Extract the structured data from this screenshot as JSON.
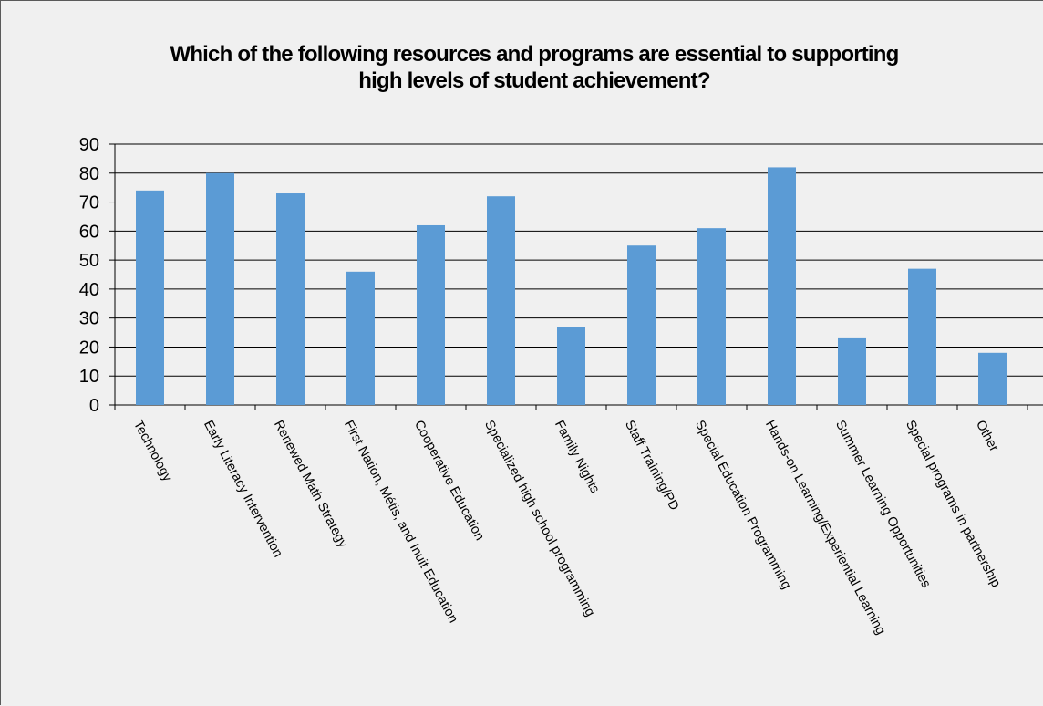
{
  "chart_data": {
    "type": "bar",
    "title_lines": [
      "Which of the following resources and programs are essential to supporting",
      "high levels of student achievement?"
    ],
    "categories": [
      "Technology",
      "Early Literacy Intervention",
      "Renewed Math Strategy",
      "First Nation, Métis, and Inuit Education",
      "Cooperative Education",
      "Specialized high school programming",
      "Family Nights",
      "Staff Training/PD",
      "Special Education Programming",
      "Hands-on Learning/Experiential Learning",
      "Summer Learning Opportunities",
      "Special programs in partnership",
      "Other"
    ],
    "values": [
      74,
      80,
      73,
      46,
      62,
      72,
      27,
      55,
      61,
      82,
      23,
      47,
      18
    ],
    "ylim": [
      0,
      90
    ],
    "yticks": [
      "0",
      "10",
      "20",
      "30",
      "40",
      "50",
      "60",
      "70",
      "80",
      "90"
    ],
    "grid": true,
    "legend": "none",
    "bar_color": "#5b9bd5",
    "grid_color": "#000000"
  }
}
